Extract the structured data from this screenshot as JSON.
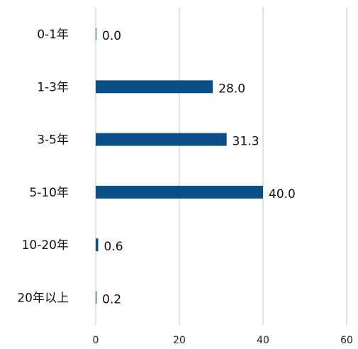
{
  "chart_data": {
    "type": "bar",
    "orientation": "horizontal",
    "categories": [
      "0-1年",
      "1-3年",
      "3-5年",
      "5-10年",
      "10-20年",
      "20年以上"
    ],
    "values": [
      0.0,
      28.0,
      31.3,
      40.0,
      0.6,
      0.2
    ],
    "value_labels": [
      "0.0",
      "28.0",
      "31.3",
      "40.0",
      "0.6",
      "0.2"
    ],
    "xticks": [
      0,
      20,
      40,
      60
    ],
    "xlim": [
      0,
      60
    ],
    "title": "",
    "xlabel": "",
    "ylabel": "",
    "grid": "vertical",
    "legend": "none",
    "bar_color": "#0a4f86",
    "grid_color": "#c4c4c4"
  }
}
